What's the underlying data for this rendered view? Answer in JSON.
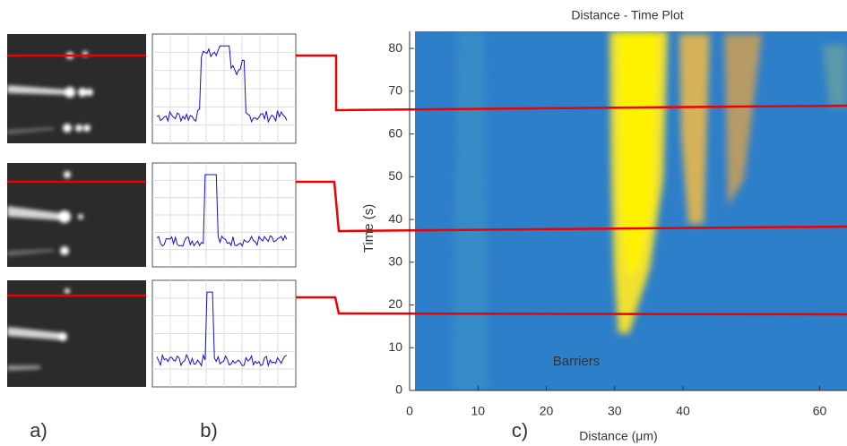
{
  "panels": {
    "a": "a)",
    "b": "b)",
    "c": "c)"
  },
  "chart_data": {
    "type": "heatmap",
    "title": "Distance - Time Plot",
    "xlabel": "Distance (μm)",
    "ylabel": "Time (s)",
    "annotation": "Barriers",
    "xlim": [
      0,
      64
    ],
    "ylim": [
      0,
      84
    ],
    "xticks": [
      0,
      10,
      20,
      30,
      40,
      60
    ],
    "yticks": [
      0,
      10,
      20,
      30,
      40,
      50,
      60,
      70,
      80
    ]
  }
}
